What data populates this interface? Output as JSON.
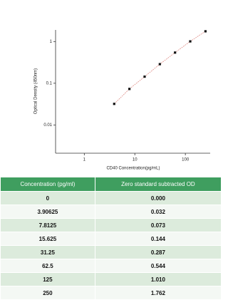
{
  "chart_data": {
    "type": "scatter",
    "x_label": "CD40 Concentration(pg/mL)",
    "y_label": "Optical Density (450nm)",
    "x": [
      3.90625,
      7.8125,
      15.625,
      31.25,
      62.5,
      125,
      250
    ],
    "values": [
      0.032,
      0.073,
      0.144,
      0.287,
      0.544,
      1.01,
      1.762
    ],
    "color": "#111111",
    "fit_color": "#e0908a",
    "log_x": true,
    "log_y": true,
    "xlim": [
      0.27,
      310
    ],
    "ylim": [
      0.0021,
      1.9
    ],
    "xticks": [
      1,
      10,
      100
    ],
    "yticks": [
      0.01,
      0.1,
      1
    ]
  },
  "table": {
    "header": [
      "Concentration (pg/ml)",
      "Zero standard subtracted OD"
    ],
    "rows": [
      [
        "0",
        "0.000"
      ],
      [
        "3.90625",
        "0.032"
      ],
      [
        "7.8125",
        "0.073"
      ],
      [
        "15.625",
        "0.144"
      ],
      [
        "31.25",
        "0.287"
      ],
      [
        "62.5",
        "0.544"
      ],
      [
        "125",
        "1.010"
      ],
      [
        "250",
        "1.762"
      ]
    ]
  }
}
